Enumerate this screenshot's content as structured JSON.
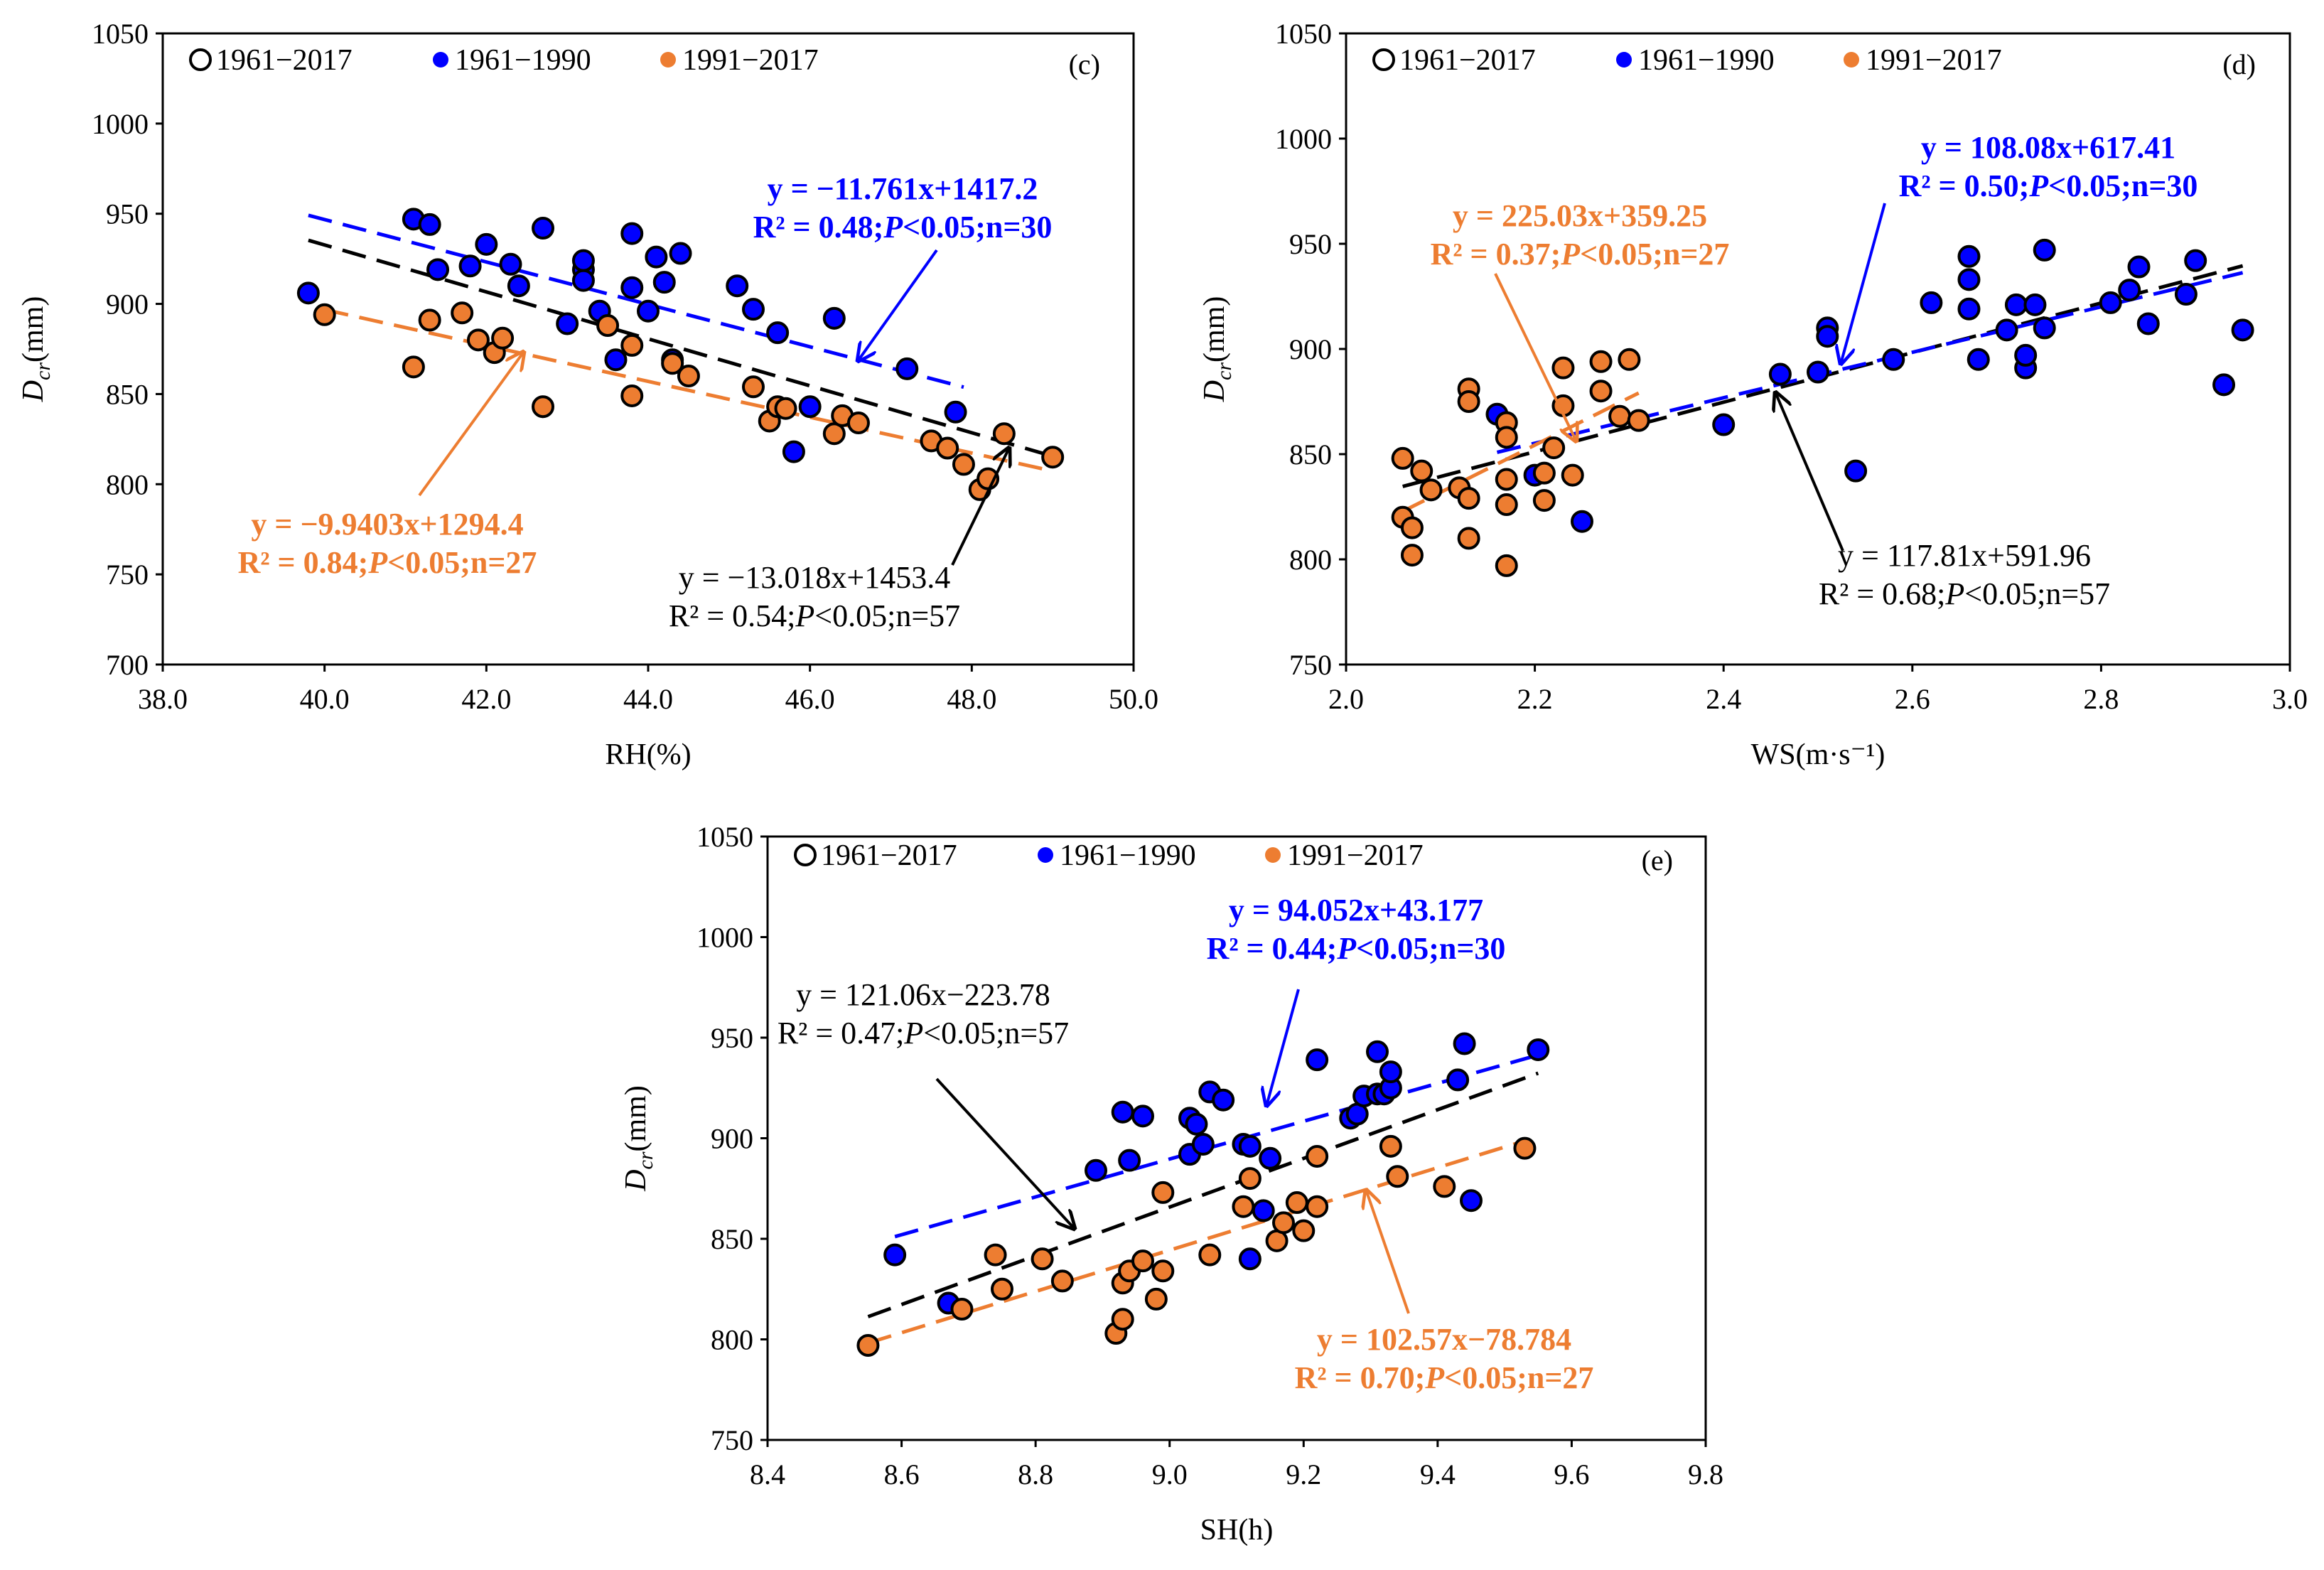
{
  "colors": {
    "all": "#000000",
    "p1": "#0000ff",
    "p2": "#ed7d31",
    "frame": "#000000"
  },
  "panel_labels": [
    "(c)",
    "(d)",
    "(e)"
  ],
  "legend": {
    "all": "1961−2017",
    "p1": "1961−1990",
    "p2": "1991−2017"
  },
  "axis_common": {
    "ylabel_main": "D",
    "ylabel_sub": "cr",
    "ylabel_unit": "(mm)"
  },
  "chart_data": [
    {
      "id": "c",
      "type": "scatter",
      "xlabel": "RH(%)",
      "ylabel": "Dcr(mm)",
      "xlim": [
        38,
        50
      ],
      "ylim": [
        700,
        1050
      ],
      "xticks": [
        "38.0",
        "40.0",
        "42.0",
        "44.0",
        "46.0",
        "48.0",
        "50.0"
      ],
      "yticks": [
        "700",
        "750",
        "800",
        "850",
        "900",
        "950",
        "1000",
        "1050"
      ],
      "series": [
        {
          "name": "1961−1990",
          "points": [
            [
              39.8,
              906
            ],
            [
              41.1,
              947
            ],
            [
              41.3,
              944
            ],
            [
              41.4,
              919
            ],
            [
              41.8,
              921
            ],
            [
              42.0,
              933
            ],
            [
              42.3,
              922
            ],
            [
              42.4,
              910
            ],
            [
              42.7,
              942
            ],
            [
              43.0,
              889
            ],
            [
              43.2,
              919
            ],
            [
              43.2,
              913
            ],
            [
              43.2,
              924
            ],
            [
              43.4,
              896
            ],
            [
              43.6,
              869
            ],
            [
              43.8,
              939
            ],
            [
              43.8,
              909
            ],
            [
              44.0,
              896
            ],
            [
              44.1,
              926
            ],
            [
              44.2,
              912
            ],
            [
              44.4,
              928
            ],
            [
              45.1,
              910
            ],
            [
              45.3,
              897
            ],
            [
              45.6,
              884
            ],
            [
              45.8,
              818
            ],
            [
              46.0,
              843
            ],
            [
              46.3,
              892
            ],
            [
              47.2,
              864
            ],
            [
              47.8,
              840
            ],
            [
              44.3,
              869
            ]
          ]
        },
        {
          "name": "1991−2017",
          "points": [
            [
              40.0,
              894
            ],
            [
              41.1,
              865
            ],
            [
              41.3,
              891
            ],
            [
              41.7,
              895
            ],
            [
              41.9,
              880
            ],
            [
              42.1,
              873
            ],
            [
              42.2,
              881
            ],
            [
              42.7,
              843
            ],
            [
              43.8,
              877
            ],
            [
              43.8,
              849
            ],
            [
              44.3,
              867
            ],
            [
              44.5,
              860
            ],
            [
              45.3,
              854
            ],
            [
              45.5,
              835
            ],
            [
              45.6,
              843
            ],
            [
              45.7,
              842
            ],
            [
              46.3,
              828
            ],
            [
              46.4,
              838
            ],
            [
              46.6,
              834
            ],
            [
              47.5,
              824
            ],
            [
              47.7,
              820
            ],
            [
              47.9,
              811
            ],
            [
              48.1,
              797
            ],
            [
              48.2,
              803
            ],
            [
              48.4,
              828
            ],
            [
              49.0,
              815
            ],
            [
              43.5,
              888
            ]
          ]
        }
      ],
      "fits": {
        "all": {
          "equation": "y = −13.018x+1453.4",
          "stats": "R² = 0.54;P<0.05;n=57",
          "x_range": [
            39.8,
            49.0
          ],
          "slope": -13.018,
          "intercept": 1453.4
        },
        "p1": {
          "equation": "y = −11.761x+1417.2",
          "stats": "R² = 0.48;P<0.05;n=30",
          "x_range": [
            39.8,
            47.9
          ],
          "slope": -11.761,
          "intercept": 1417.2
        },
        "p2": {
          "equation": "y = −9.9403x+1294.4",
          "stats": "R² = 0.84;P<0.05;n=27",
          "x_range": [
            40.0,
            49.0
          ],
          "slope": -9.9403,
          "intercept": 1294.4
        }
      }
    },
    {
      "id": "d",
      "type": "scatter",
      "xlabel": "WS(m·s⁻¹)",
      "ylabel": "Dcr(mm)",
      "xlim": [
        2.0,
        3.0
      ],
      "ylim": [
        750,
        1050
      ],
      "xticks": [
        "2.0",
        "2.2",
        "2.4",
        "2.6",
        "2.8",
        "3.0"
      ],
      "yticks": [
        "750",
        "800",
        "850",
        "900",
        "950",
        "1000",
        "1050"
      ],
      "series": [
        {
          "name": "1961−1990",
          "points": [
            [
              2.16,
              869
            ],
            [
              2.2,
              840
            ],
            [
              2.25,
              818
            ],
            [
              2.4,
              864
            ],
            [
              2.46,
              888
            ],
            [
              2.5,
              889
            ],
            [
              2.51,
              910
            ],
            [
              2.51,
              906
            ],
            [
              2.54,
              842
            ],
            [
              2.58,
              895
            ],
            [
              2.62,
              922
            ],
            [
              2.66,
              944
            ],
            [
              2.66,
              933
            ],
            [
              2.66,
              919
            ],
            [
              2.67,
              895
            ],
            [
              2.7,
              909
            ],
            [
              2.71,
              921
            ],
            [
              2.72,
              891
            ],
            [
              2.72,
              897
            ],
            [
              2.73,
              921
            ],
            [
              2.74,
              910
            ],
            [
              2.74,
              947
            ],
            [
              2.81,
              922
            ],
            [
              2.83,
              928
            ],
            [
              2.84,
              939
            ],
            [
              2.85,
              912
            ],
            [
              2.89,
              926
            ],
            [
              2.9,
              942
            ],
            [
              2.93,
              883
            ],
            [
              2.95,
              909
            ]
          ]
        },
        {
          "name": "1991−2017",
          "points": [
            [
              2.06,
              848
            ],
            [
              2.06,
              820
            ],
            [
              2.07,
              815
            ],
            [
              2.07,
              802
            ],
            [
              2.08,
              842
            ],
            [
              2.09,
              833
            ],
            [
              2.12,
              834
            ],
            [
              2.13,
              881
            ],
            [
              2.13,
              875
            ],
            [
              2.13,
              829
            ],
            [
              2.13,
              810
            ],
            [
              2.17,
              865
            ],
            [
              2.17,
              858
            ],
            [
              2.17,
              838
            ],
            [
              2.17,
              826
            ],
            [
              2.17,
              797
            ],
            [
              2.21,
              841
            ],
            [
              2.21,
              828
            ],
            [
              2.22,
              853
            ],
            [
              2.23,
              891
            ],
            [
              2.23,
              873
            ],
            [
              2.24,
              840
            ],
            [
              2.27,
              894
            ],
            [
              2.27,
              880
            ],
            [
              2.29,
              868
            ],
            [
              2.3,
              895
            ],
            [
              2.31,
              866
            ]
          ]
        }
      ],
      "fits": {
        "all": {
          "equation": "y = 117.81x+591.96",
          "stats": "R² = 0.68;P<0.05;n=57",
          "x_range": [
            2.06,
            2.95
          ],
          "slope": 117.81,
          "intercept": 591.96
        },
        "p1": {
          "equation": "y = 108.08x+617.41",
          "stats": "R² = 0.50;P<0.05;n=30",
          "x_range": [
            2.16,
            2.95
          ],
          "slope": 108.08,
          "intercept": 617.41
        },
        "p2": {
          "equation": "y = 225.03x+359.25",
          "stats": "R² = 0.37;P<0.05;n=27",
          "x_range": [
            2.06,
            2.31
          ],
          "slope": 225.03,
          "intercept": 359.25
        }
      }
    },
    {
      "id": "e",
      "type": "scatter",
      "xlabel": "SH(h)",
      "ylabel": "Dcr(mm)",
      "xlim": [
        8.4,
        9.8
      ],
      "ylim": [
        750,
        1050
      ],
      "xticks": [
        "8.4",
        "8.6",
        "8.8",
        "9.0",
        "9.2",
        "9.4",
        "9.6",
        "9.8"
      ],
      "yticks": [
        "750",
        "800",
        "850",
        "900",
        "950",
        "1000",
        "1050"
      ],
      "series": [
        {
          "name": "1961−1990",
          "points": [
            [
              8.59,
              842
            ],
            [
              8.67,
              818
            ],
            [
              8.89,
              884
            ],
            [
              8.93,
              913
            ],
            [
              8.94,
              889
            ],
            [
              8.96,
              911
            ],
            [
              9.03,
              910
            ],
            [
              9.03,
              892
            ],
            [
              9.04,
              907
            ],
            [
              9.05,
              897
            ],
            [
              9.06,
              923
            ],
            [
              9.08,
              919
            ],
            [
              9.11,
              897
            ],
            [
              9.12,
              896
            ],
            [
              9.12,
              840
            ],
            [
              9.14,
              864
            ],
            [
              9.15,
              890
            ],
            [
              9.22,
              939
            ],
            [
              9.27,
              910
            ],
            [
              9.28,
              912
            ],
            [
              9.29,
              921
            ],
            [
              9.31,
              943
            ],
            [
              9.31,
              922
            ],
            [
              9.32,
              922
            ],
            [
              9.33,
              925
            ],
            [
              9.33,
              933
            ],
            [
              9.43,
              929
            ],
            [
              9.44,
              947
            ],
            [
              9.45,
              869
            ],
            [
              9.55,
              944
            ]
          ]
        },
        {
          "name": "1991−2017",
          "points": [
            [
              8.55,
              797
            ],
            [
              8.69,
              815
            ],
            [
              8.74,
              842
            ],
            [
              8.75,
              825
            ],
            [
              8.81,
              840
            ],
            [
              8.84,
              829
            ],
            [
              8.92,
              803
            ],
            [
              8.93,
              810
            ],
            [
              8.93,
              828
            ],
            [
              8.94,
              834
            ],
            [
              8.96,
              839
            ],
            [
              8.98,
              820
            ],
            [
              8.99,
              834
            ],
            [
              8.99,
              873
            ],
            [
              9.06,
              842
            ],
            [
              9.11,
              866
            ],
            [
              9.12,
              880
            ],
            [
              9.16,
              849
            ],
            [
              9.17,
              858
            ],
            [
              9.19,
              868
            ],
            [
              9.2,
              854
            ],
            [
              9.22,
              891
            ],
            [
              9.22,
              866
            ],
            [
              9.33,
              896
            ],
            [
              9.34,
              881
            ],
            [
              9.41,
              876
            ],
            [
              9.53,
              895
            ]
          ]
        }
      ],
      "fits": {
        "all": {
          "equation": "y = 121.06x−223.78",
          "stats": "R² = 0.47;P<0.05;n=57",
          "x_range": [
            8.55,
            9.55
          ],
          "slope": 121.06,
          "intercept": -223.78
        },
        "p1": {
          "equation": "y = 94.052x+43.177",
          "stats": "R² = 0.44;P<0.05;n=30",
          "x_range": [
            8.59,
            9.55
          ],
          "slope": 94.052,
          "intercept": 43.177
        },
        "p2": {
          "equation": "y = 102.57x−78.784",
          "stats": "R² = 0.70;P<0.05;n=27",
          "x_range": [
            8.55,
            9.53
          ],
          "slope": 102.57,
          "intercept": -78.784
        }
      }
    }
  ]
}
